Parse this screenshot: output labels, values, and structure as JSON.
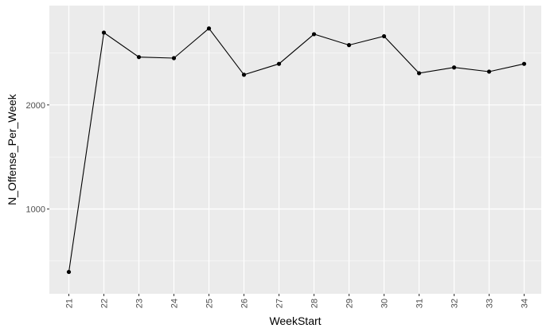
{
  "chart_data": {
    "type": "line",
    "xlabel": "WeekStart",
    "ylabel": "N_Offense_Per_Week",
    "categories": [
      "21",
      "22",
      "23",
      "24",
      "25",
      "26",
      "27",
      "28",
      "29",
      "30",
      "31",
      "32",
      "33",
      "34"
    ],
    "series": [
      {
        "values": [
          395,
          2695,
          2460,
          2450,
          2735,
          2290,
          2395,
          2680,
          2575,
          2660,
          2305,
          2360,
          2320,
          2395
        ]
      }
    ],
    "y_ticks": [
      1000,
      2000
    ],
    "y_tick_labels": [
      "1000",
      "2000"
    ],
    "ylim": [
      300,
      2840
    ],
    "grid": true,
    "colors": {
      "panel_background": "#ebebeb",
      "grid_major": "#ffffff",
      "line": "#000000",
      "point": "#000000"
    }
  }
}
